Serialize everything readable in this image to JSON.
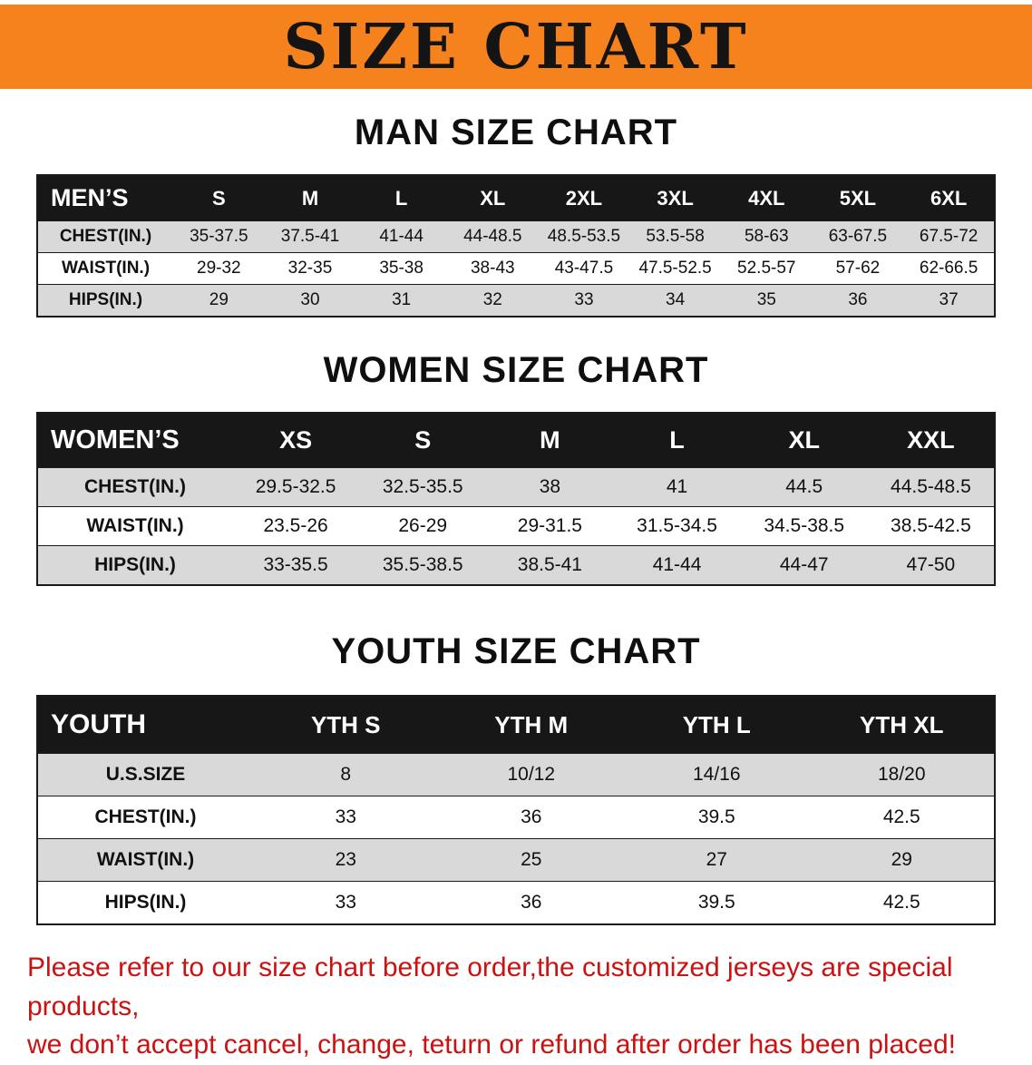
{
  "banner": {
    "title": "SIZE CHART"
  },
  "sections": {
    "men": {
      "heading": "MAN SIZE CHART",
      "table": {
        "header": [
          "MEN’S",
          "S",
          "M",
          "L",
          "XL",
          "2XL",
          "3XL",
          "4XL",
          "5XL",
          "6XL"
        ],
        "rows": [
          [
            "CHEST(IN.)",
            "35-37.5",
            "37.5-41",
            "41-44",
            "44-48.5",
            "48.5-53.5",
            "53.5-58",
            "58-63",
            "63-67.5",
            "67.5-72"
          ],
          [
            "WAIST(IN.)",
            "29-32",
            "32-35",
            "35-38",
            "38-43",
            "43-47.5",
            "47.5-52.5",
            "52.5-57",
            "57-62",
            "62-66.5"
          ],
          [
            "HIPS(IN.)",
            "29",
            "30",
            "31",
            "32",
            "33",
            "34",
            "35",
            "36",
            "37"
          ]
        ]
      }
    },
    "women": {
      "heading": "WOMEN SIZE CHART",
      "table": {
        "header": [
          "WOMEN’S",
          "XS",
          "S",
          "M",
          "L",
          "XL",
          "XXL"
        ],
        "rows": [
          [
            "CHEST(IN.)",
            "29.5-32.5",
            "32.5-35.5",
            "38",
            "41",
            "44.5",
            "44.5-48.5"
          ],
          [
            "WAIST(IN.)",
            "23.5-26",
            "26-29",
            "29-31.5",
            "31.5-34.5",
            "34.5-38.5",
            "38.5-42.5"
          ],
          [
            "HIPS(IN.)",
            "33-35.5",
            "35.5-38.5",
            "38.5-41",
            "41-44",
            "44-47",
            "47-50"
          ]
        ]
      }
    },
    "youth": {
      "heading": "YOUTH SIZE CHART",
      "table": {
        "header": [
          "YOUTH",
          "YTH S",
          "YTH M",
          "YTH L",
          "YTH XL"
        ],
        "rows": [
          [
            "U.S.SIZE",
            "8",
            "10/12",
            "14/16",
            "18/20"
          ],
          [
            "CHEST(IN.)",
            "33",
            "36",
            "39.5",
            "42.5"
          ],
          [
            "WAIST(IN.)",
            "23",
            "25",
            "27",
            "29"
          ],
          [
            "HIPS(IN.)",
            "33",
            "36",
            "39.5",
            "42.5"
          ]
        ]
      }
    }
  },
  "disclaimer": {
    "line1": "Please refer to our size chart before order,the customized jerseys are special products,",
    "line2": "we don’t accept cancel, change, teturn or refund after order has been placed!"
  },
  "colors": {
    "banner_bg": "#f6821e",
    "table_header_bg": "#171717",
    "row_alt_bg": "#d9d9d9",
    "disclaimer": "#cc1111"
  }
}
